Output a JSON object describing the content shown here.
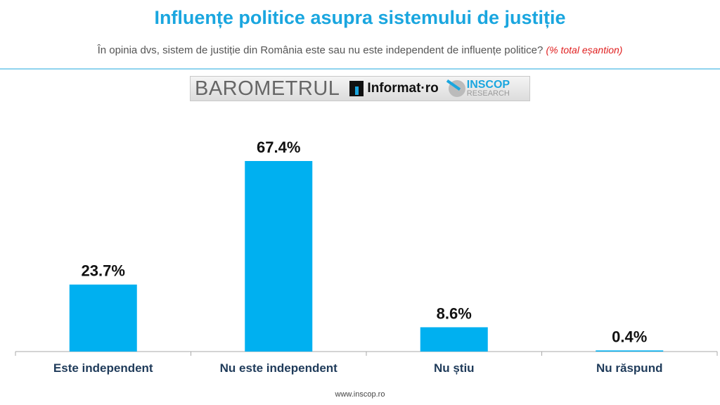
{
  "header": {
    "title": "Influențe politice asupra sistemului de justiție",
    "subtitle": "În opinia dvs, sistem de justiție din România este sau nu este independent de influențe politice?",
    "subtitle_note": "(% total eșantion)"
  },
  "logo": {
    "barometrul": "BAROMETRUL",
    "informat": "Informat·ro",
    "inscop": "INSCOP",
    "research": "RESEARCH"
  },
  "footer": "www.inscop.ro",
  "colors": {
    "bar": "#00b0f0",
    "title": "#1aa6df",
    "label": "#1f3b5a"
  },
  "chart_data": {
    "type": "bar",
    "title": "Influențe politice asupra sistemului de justiție",
    "categories": [
      "Este independent",
      "Nu este independent",
      "Nu știu",
      "Nu răspund"
    ],
    "values": [
      23.7,
      67.4,
      8.6,
      0.4
    ],
    "data_labels": [
      "23.7%",
      "67.4%",
      "8.6%",
      "0.4%"
    ],
    "ylim": [
      0,
      75
    ],
    "grid": false,
    "legend": "none"
  }
}
